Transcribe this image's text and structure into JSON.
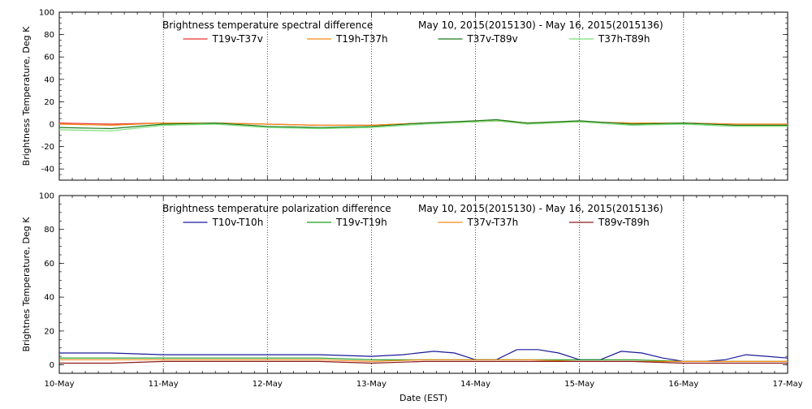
{
  "chart_data": [
    {
      "type": "line",
      "title_left": "Brightness temperature spectral difference",
      "title_right": "May 10, 2015(2015130) - May 16, 2015(2015136)",
      "xlabel": "",
      "ylabel": "Brightness Temperature, Deg K",
      "ylim": [
        -50,
        100
      ],
      "yticks": [
        -40,
        -20,
        0,
        20,
        40,
        60,
        80,
        100
      ],
      "ytick_labels": [
        "-40",
        "-20",
        "0",
        "20",
        "40",
        "60",
        "80",
        "100"
      ],
      "xlim": [
        0,
        7
      ],
      "x_unit": "days since 10-May 00:00 EST",
      "grid": "vertical-dotted",
      "legend_placement": "top",
      "series": [
        {
          "name": "T19v-T37v",
          "color": "#e8302a",
          "x": [
            0,
            0.5,
            1,
            1.5,
            2,
            2.5,
            3,
            3.5,
            4,
            4.2,
            4.5,
            5,
            5.5,
            6,
            6.5,
            7
          ],
          "values": [
            1,
            0,
            1,
            1,
            0,
            -1,
            -1,
            1,
            2,
            3,
            1,
            2,
            1,
            1,
            0,
            0
          ]
        },
        {
          "name": "T19h-T37h",
          "color": "#f28a1a",
          "x": [
            0,
            0.5,
            1,
            1.5,
            2,
            2.5,
            3,
            3.5,
            4,
            4.2,
            4.5,
            5,
            5.5,
            6,
            6.5,
            7
          ],
          "values": [
            0,
            -1,
            1,
            1,
            0,
            -1,
            -1,
            1,
            2,
            3,
            1,
            2,
            1,
            1,
            0,
            0
          ]
        },
        {
          "name": "T37v-T89v",
          "color": "#1a7a1a",
          "x": [
            0,
            0.5,
            1,
            1.5,
            2,
            2.5,
            3,
            3.5,
            4,
            4.2,
            4.5,
            5,
            5.5,
            6,
            6.5,
            7
          ],
          "values": [
            -3,
            -4,
            0,
            1,
            -2,
            -3,
            -2,
            1,
            3,
            4,
            1,
            3,
            0,
            1,
            -1,
            -1
          ]
        },
        {
          "name": "T37h-T89h",
          "color": "#7be07b",
          "x": [
            0,
            0.5,
            1,
            1.5,
            2,
            2.5,
            3,
            3.5,
            4,
            4.2,
            4.5,
            5,
            5.5,
            6,
            6.5,
            7
          ],
          "values": [
            -5,
            -6,
            -1,
            0,
            -3,
            -4,
            -3,
            0,
            2,
            3,
            0,
            2,
            -1,
            0,
            -2,
            -2
          ]
        }
      ]
    },
    {
      "type": "line",
      "title_left": "Brightness temperature polarization difference",
      "title_right": "May 10, 2015(2015130) - May 16, 2015(2015136)",
      "xlabel": "Date (EST)",
      "ylabel": "Brightnes Temperature, Deg K",
      "ylim": [
        -5,
        100
      ],
      "yticks": [
        0,
        20,
        40,
        60,
        80,
        100
      ],
      "ytick_labels": [
        "0",
        "20",
        "40",
        "60",
        "80",
        "100"
      ],
      "xlim": [
        0,
        7
      ],
      "x_unit": "days since 10-May 00:00 EST",
      "xticks": [
        0,
        1,
        2,
        3,
        4,
        5,
        6,
        7
      ],
      "xtick_labels": [
        "10-May",
        "11-May",
        "12-May",
        "13-May",
        "14-May",
        "15-May",
        "16-May",
        "17-May"
      ],
      "grid": "vertical-dotted",
      "legend_placement": "top",
      "series": [
        {
          "name": "T10v-T10h",
          "color": "#1a1a9a",
          "x": [
            0,
            0.5,
            1,
            1.5,
            2,
            2.5,
            3,
            3.3,
            3.6,
            3.8,
            4,
            4.2,
            4.4,
            4.6,
            4.8,
            5,
            5.2,
            5.4,
            5.6,
            5.8,
            6,
            6.2,
            6.4,
            6.6,
            6.8,
            7
          ],
          "values": [
            7,
            7,
            6,
            6,
            6,
            6,
            5,
            6,
            8,
            7,
            3,
            3,
            9,
            9,
            7,
            3,
            3,
            8,
            7,
            4,
            2,
            2,
            3,
            6,
            5,
            4
          ]
        },
        {
          "name": "T19v-T19h",
          "color": "#1a9a1a",
          "x": [
            0,
            0.5,
            1,
            1.5,
            2,
            2.5,
            3,
            3.5,
            4,
            4.5,
            5,
            5.5,
            6,
            6.5,
            7
          ],
          "values": [
            4,
            4,
            4,
            4,
            4,
            4,
            3,
            3,
            3,
            3,
            3,
            3,
            2,
            2,
            2
          ]
        },
        {
          "name": "T37v-T37h",
          "color": "#f28a1a",
          "x": [
            0,
            0.5,
            1,
            1.5,
            2,
            2.5,
            3,
            3.5,
            4,
            4.5,
            5,
            5.5,
            6,
            6.5,
            7
          ],
          "values": [
            3,
            3,
            3,
            3,
            3,
            3,
            2,
            3,
            3,
            3,
            2,
            2,
            2,
            2,
            2
          ]
        },
        {
          "name": "T89v-T89h",
          "color": "#8a1a1a",
          "x": [
            0,
            0.5,
            1,
            1.5,
            2,
            2.5,
            3,
            3.5,
            4,
            4.5,
            5,
            5.5,
            6,
            6.5,
            7
          ],
          "values": [
            1,
            1,
            2,
            2,
            2,
            2,
            1,
            2,
            2,
            2,
            2,
            2,
            1,
            1,
            1
          ]
        }
      ]
    }
  ]
}
